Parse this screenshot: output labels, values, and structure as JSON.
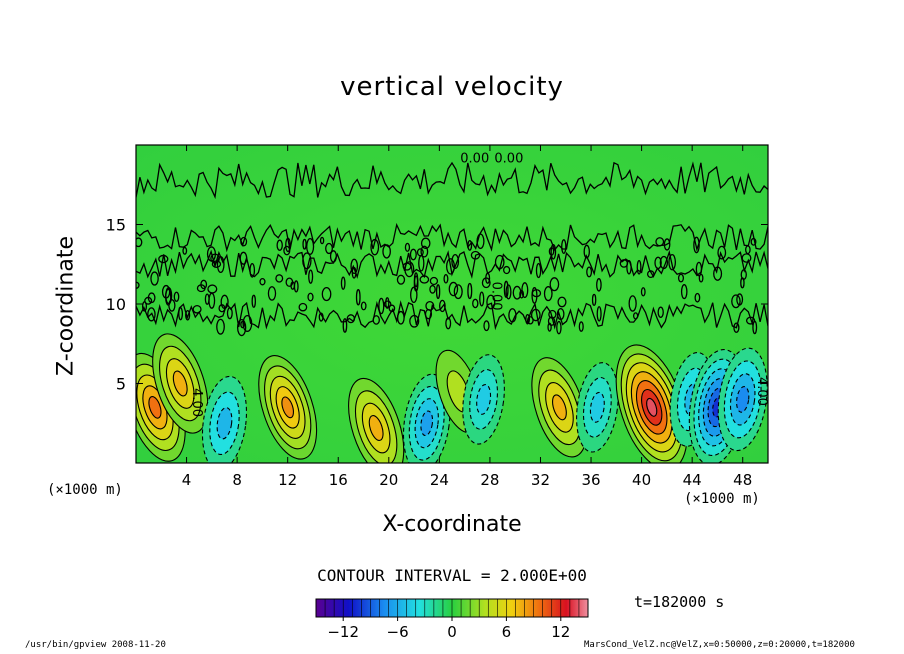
{
  "chart_data": {
    "type": "heatmap",
    "title": "vertical velocity",
    "xlabel": "X-coordinate",
    "ylabel": "Z-coordinate",
    "x_unit_left": "(×1000 m)",
    "x_unit_right": "(×1000 m)",
    "xlim": [
      0,
      50
    ],
    "ylim": [
      0,
      20
    ],
    "x_ticks": [
      4,
      8,
      12,
      16,
      20,
      24,
      28,
      32,
      36,
      40,
      44,
      48
    ],
    "y_ticks": [
      5,
      10,
      15
    ],
    "contour_interval_label": "CONTOUR INTERVAL = 2.000E+00",
    "contour_labels": [
      "4.00",
      "0.00",
      "0.00",
      "0.00",
      "4.00"
    ],
    "colorbar": {
      "range": [
        -15,
        15
      ],
      "tick_labels": [
        "−12",
        "−6",
        "0",
        "6",
        "12"
      ],
      "tick_values": [
        -12,
        -6,
        0,
        6,
        12
      ]
    },
    "cells": [
      {
        "x": 1.5,
        "z": 3.5,
        "value": 10
      },
      {
        "x": 3.5,
        "z": 5.0,
        "value": 8
      },
      {
        "x": 7.0,
        "z": 2.5,
        "value": -6
      },
      {
        "x": 12.0,
        "z": 3.5,
        "value": 9
      },
      {
        "x": 19.0,
        "z": 2.2,
        "value": 8
      },
      {
        "x": 23.0,
        "z": 2.5,
        "value": -7
      },
      {
        "x": 25.5,
        "z": 4.5,
        "value": 4
      },
      {
        "x": 27.5,
        "z": 4.0,
        "value": -5
      },
      {
        "x": 33.5,
        "z": 3.5,
        "value": 8
      },
      {
        "x": 36.5,
        "z": 3.5,
        "value": -5
      },
      {
        "x": 40.8,
        "z": 3.5,
        "value": 14
      },
      {
        "x": 44.0,
        "z": 4.0,
        "value": -6
      },
      {
        "x": 46.0,
        "z": 3.5,
        "value": -11
      },
      {
        "x": 48.0,
        "z": 4.0,
        "value": -8
      }
    ],
    "time_label": "t=182000 s",
    "colors": {
      "background_field": "#35d43a",
      "positive_max": "#e0001c",
      "negative_max": "#0818c8"
    }
  },
  "footer": {
    "left": "/usr/bin/gpview  2008-11-20",
    "right": "MarsCond_VelZ.nc@VelZ,x=0:50000,z=0:20000,t=182000"
  }
}
